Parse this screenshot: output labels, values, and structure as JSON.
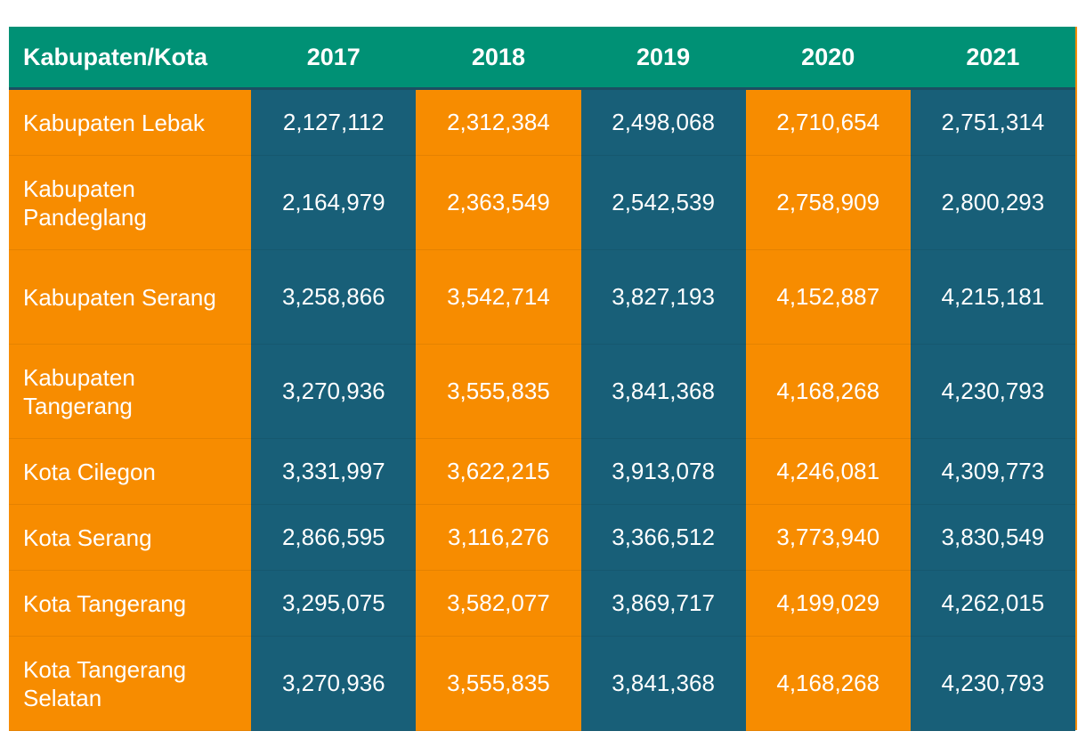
{
  "chart_data": {
    "type": "table",
    "columns": [
      "Kabupaten/Kota",
      "2017",
      "2018",
      "2019",
      "2020",
      "2021"
    ],
    "rows": [
      {
        "name": "Kabupaten Lebak",
        "values": [
          "2,127,112",
          "2,312,384",
          "2,498,068",
          "2,710,654",
          "2,751,314"
        ]
      },
      {
        "name": "Kabupaten Pandeglang",
        "values": [
          "2,164,979",
          "2,363,549",
          "2,542,539",
          "2,758,909",
          "2,800,293"
        ]
      },
      {
        "name": "Kabupaten Serang",
        "values": [
          "3,258,866",
          "3,542,714",
          "3,827,193",
          "4,152,887",
          "4,215,181"
        ]
      },
      {
        "name": "Kabupaten Tangerang",
        "values": [
          "3,270,936",
          "3,555,835",
          "3,841,368",
          "4,168,268",
          "4,230,793"
        ]
      },
      {
        "name": "Kota Cilegon",
        "values": [
          "3,331,997",
          "3,622,215",
          "3,913,078",
          "4,246,081",
          "4,309,773"
        ]
      },
      {
        "name": "Kota Serang",
        "values": [
          "2,866,595",
          "3,116,276",
          "3,366,512",
          "3,773,940",
          "3,830,549"
        ]
      },
      {
        "name": "Kota Tangerang",
        "values": [
          "3,295,075",
          "3,582,077",
          "3,869,717",
          "4,199,029",
          "4,262,015"
        ]
      },
      {
        "name": "Kota Tangerang Selatan",
        "values": [
          "3,270,936",
          "3,555,835",
          "3,841,368",
          "4,168,268",
          "4,230,793"
        ]
      }
    ]
  },
  "colors": {
    "header": "#009175",
    "orange": "#f78c00",
    "blue": "#185f78",
    "text": "#ffffff"
  }
}
